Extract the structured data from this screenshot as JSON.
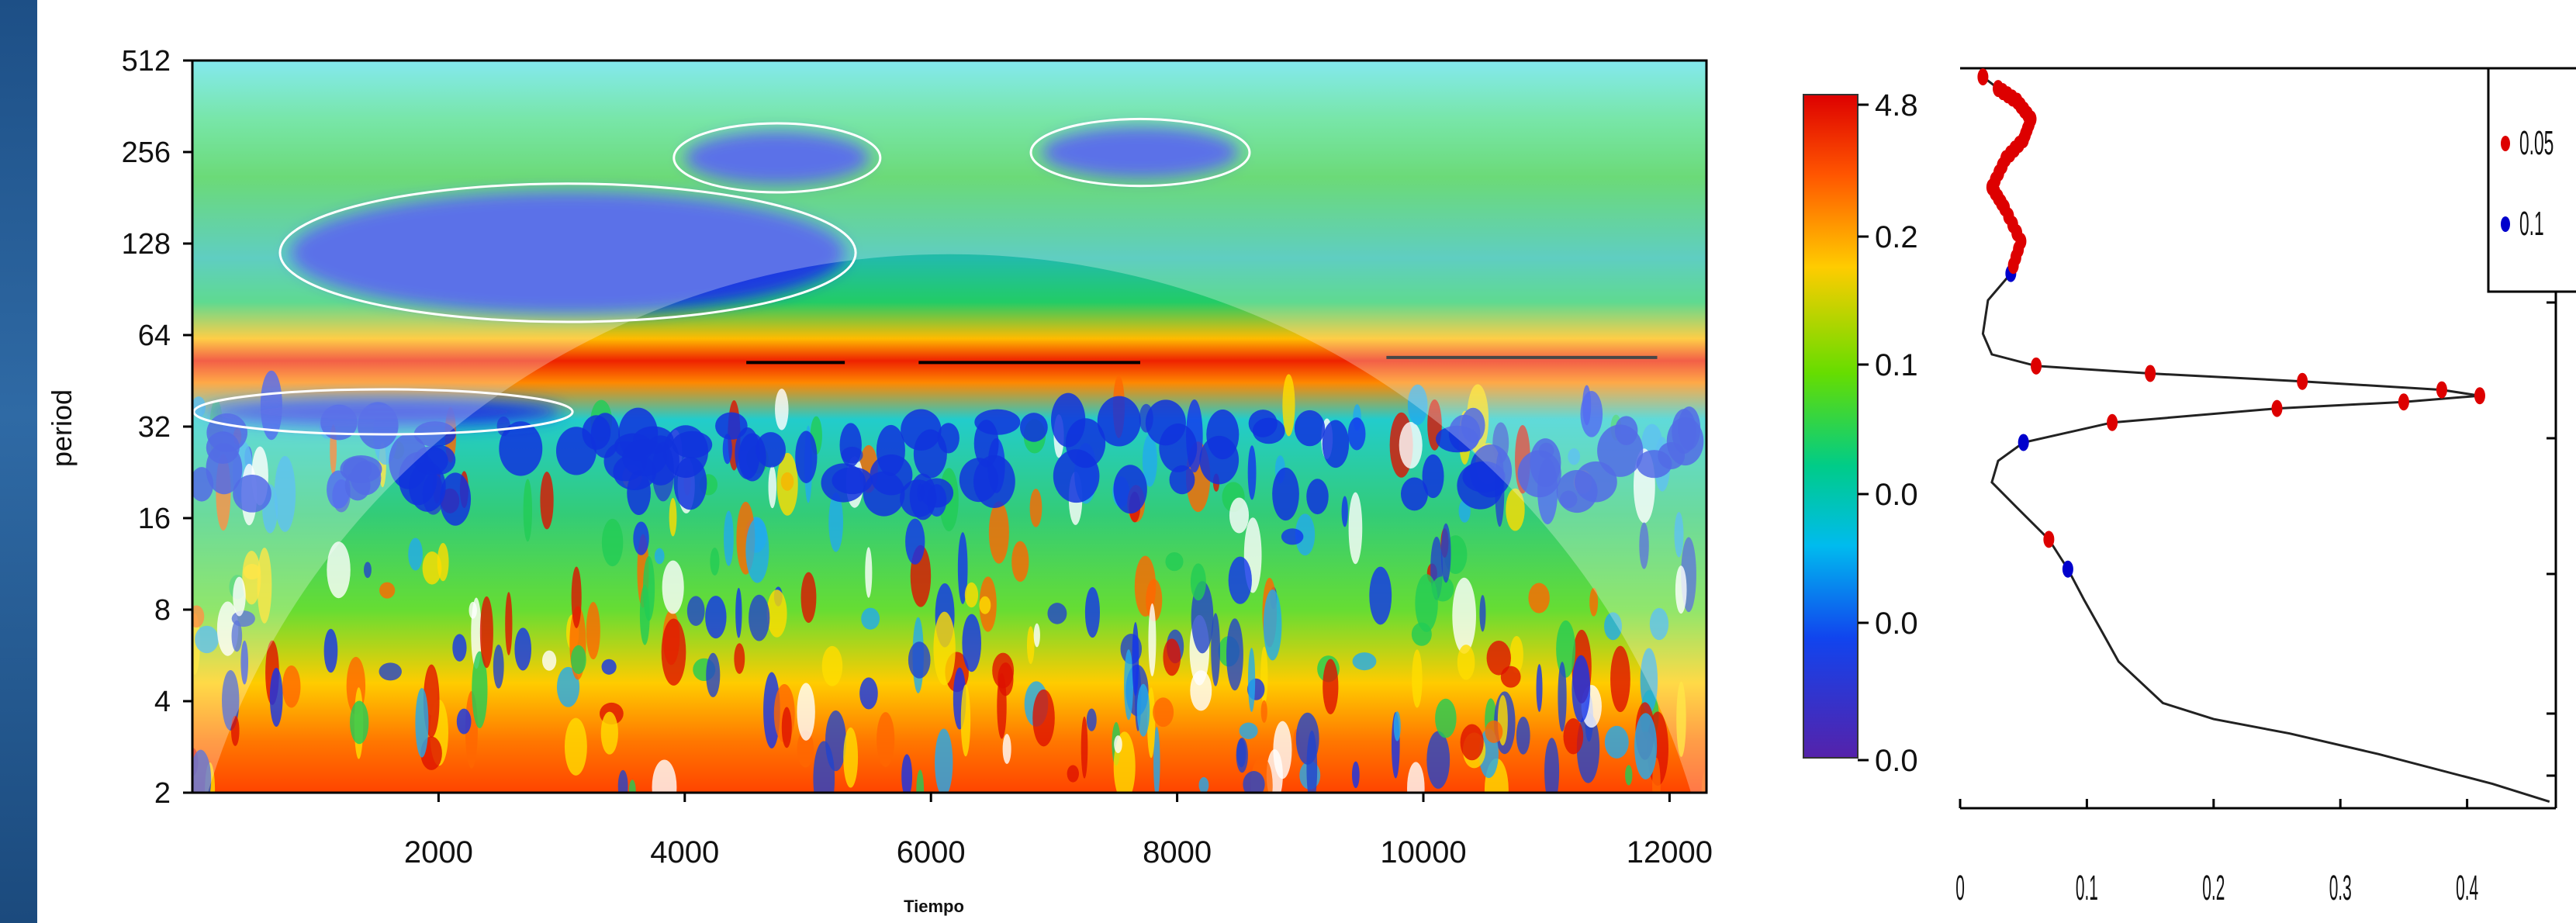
{
  "chart_data": [
    {
      "type": "heatmap",
      "title": "",
      "xlabel": "Tiempo",
      "ylabel": "period",
      "xlim": [
        0,
        12300
      ],
      "ylim": [
        2,
        512
      ],
      "y_scale": "log2",
      "x_ticks": [
        2000,
        4000,
        6000,
        8000,
        10000,
        12000
      ],
      "y_ticks": [
        2,
        4,
        8,
        16,
        32,
        64,
        128,
        256,
        512
      ],
      "dominant_band_period": 55,
      "high_power_segments": [
        {
          "x": [
            4500,
            5300
          ],
          "period": 52
        },
        {
          "x": [
            5900,
            7700
          ],
          "period": 52
        },
        {
          "x": [
            9700,
            11900
          ],
          "period": 54
        }
      ],
      "low_power_regions": [
        {
          "x": [
            800,
            5300
          ],
          "period": [
            75,
            190
          ]
        },
        {
          "x": [
            4000,
            5500
          ],
          "period": [
            200,
            300
          ]
        },
        {
          "x": [
            6900,
            8500
          ],
          "period": [
            210,
            310
          ]
        },
        {
          "x": [
            100,
            3000
          ],
          "period": [
            32,
            40
          ]
        }
      ]
    },
    {
      "type": "colorbar",
      "tick_labels": [
        "4.8",
        "0.2",
        "0.1",
        "0.0",
        "0.0",
        "0.0"
      ],
      "colors": [
        "#dd0000",
        "#ff8800",
        "#ffee00",
        "#33cc00",
        "#00cc99",
        "#0088ee",
        "#2233dd",
        "#5522aa"
      ]
    },
    {
      "type": "line",
      "title": "",
      "xlabel": "",
      "ylabel": "",
      "xlim": [
        0,
        0.47
      ],
      "ylim": [
        2,
        512
      ],
      "y_scale": "log2",
      "x_ticks": [
        "0",
        "0.1",
        "0.2",
        "0.3",
        "0.4"
      ],
      "legend": {
        "position": "top-right",
        "entries": [
          {
            "label": "0.05",
            "color": "#dd0000"
          },
          {
            "label": "0.1",
            "color": "#0000cc"
          }
        ]
      },
      "series": [
        {
          "points": [
            [
              0.465,
              2.1
            ],
            [
              0.42,
              2.4
            ],
            [
              0.33,
              3.0
            ],
            [
              0.26,
              3.5
            ],
            [
              0.2,
              3.9
            ],
            [
              0.16,
              4.4
            ],
            [
              0.125,
              6
            ],
            [
              0.112,
              7.5
            ],
            [
              0.098,
              9.5
            ],
            [
              0.085,
              12
            ],
            [
              0.07,
              15
            ],
            [
              0.045,
              19
            ],
            [
              0.025,
              23
            ],
            [
              0.03,
              27
            ],
            [
              0.05,
              31
            ],
            [
              0.12,
              36
            ],
            [
              0.25,
              40
            ],
            [
              0.35,
              42
            ],
            [
              0.41,
              44
            ],
            [
              0.38,
              46
            ],
            [
              0.27,
              49
            ],
            [
              0.15,
              52
            ],
            [
              0.06,
              55
            ],
            [
              0.025,
              60
            ],
            [
              0.018,
              70
            ],
            [
              0.022,
              90
            ],
            [
              0.04,
              110
            ],
            [
              0.048,
              140
            ],
            [
              0.035,
              180
            ],
            [
              0.025,
              210
            ],
            [
              0.036,
              260
            ],
            [
              0.05,
              300
            ],
            [
              0.056,
              350
            ],
            [
              0.045,
              400
            ],
            [
              0.03,
              440
            ],
            [
              0.018,
              480
            ]
          ]
        }
      ]
    }
  ]
}
